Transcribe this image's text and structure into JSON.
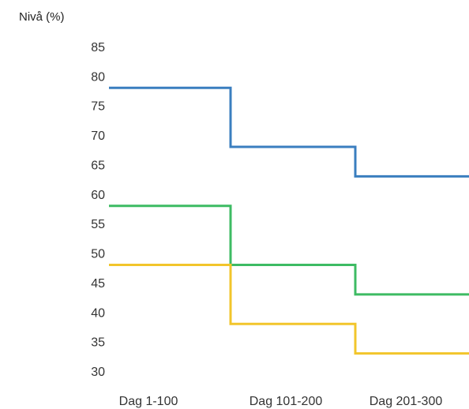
{
  "chart_data": {
    "type": "line",
    "step": true,
    "ylabel": "Nivå (%)",
    "xlabel": "",
    "title": "",
    "categories": [
      "Dag 1-100",
      "Dag 101-200",
      "Dag 201-300"
    ],
    "y_ticks": [
      85,
      80,
      75,
      70,
      65,
      60,
      55,
      50,
      45,
      40,
      35,
      30
    ],
    "ylim": [
      30,
      85
    ],
    "grid": false,
    "legend": "none",
    "series": [
      {
        "color": "#3a7ebf",
        "values": [
          78,
          68,
          63
        ]
      },
      {
        "color": "#3dbb63",
        "values": [
          58,
          48,
          43
        ]
      },
      {
        "color": "#f2c52b",
        "values": [
          48,
          38,
          33
        ]
      }
    ]
  }
}
